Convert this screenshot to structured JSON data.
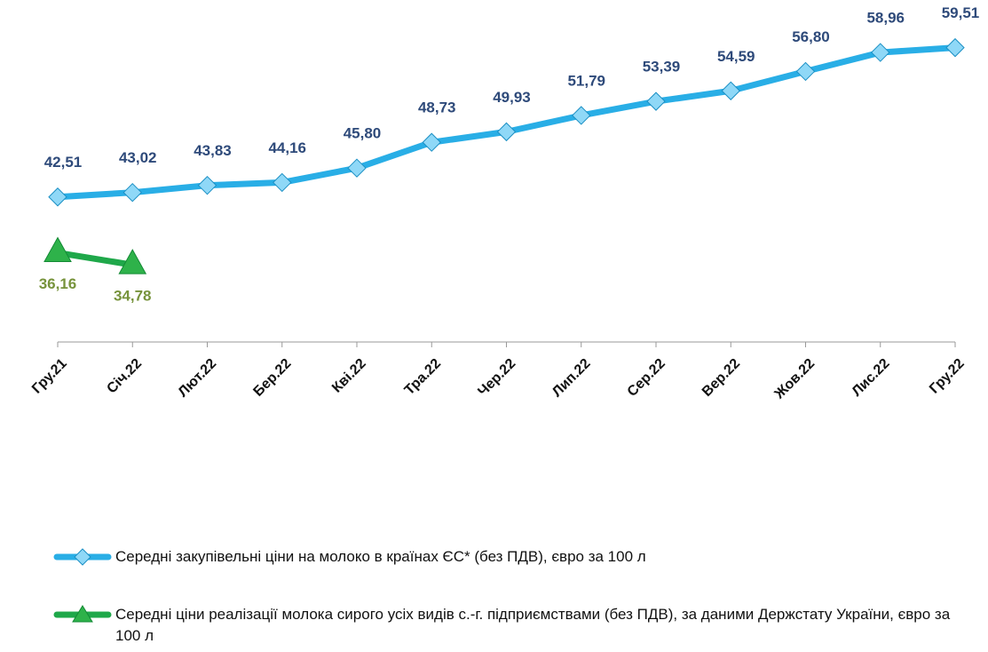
{
  "chart_data": {
    "type": "line",
    "categories": [
      "Гру.21",
      "Січ.22",
      "Лют.22",
      "Бер.22",
      "Кві.22",
      "Тра.22",
      "Чер.22",
      "Лип.22",
      "Сер.22",
      "Вер.22",
      "Жов.22",
      "Лис.22",
      "Гру.22"
    ],
    "series": [
      {
        "name": "Середні закупівельні ціни на молоко в країнах ЄС* (без ПДВ), євро за 100 л",
        "color": "#29aee6",
        "marker": "diamond",
        "label_color": "#2e4a7a",
        "values": [
          42.51,
          43.02,
          43.83,
          44.16,
          45.8,
          48.73,
          49.93,
          51.79,
          53.39,
          54.59,
          56.8,
          58.96,
          59.51
        ],
        "value_labels": [
          "42,51",
          "43,02",
          "43,83",
          "44,16",
          "45,80",
          "48,73",
          "49,93",
          "51,79",
          "53,39",
          "54,59",
          "56,80",
          "58,96",
          "59,51"
        ]
      },
      {
        "name": "Середні ціни реалізації молока сирого усіх видів с.-г. підприємствами (без ПДВ), за даними Держстату України, євро за 100 л",
        "color": "#1fa84a",
        "marker": "triangle",
        "label_color": "#77933c",
        "label_position": "below",
        "values": [
          36.16,
          34.78,
          null,
          null,
          null,
          null,
          null,
          null,
          null,
          null,
          null,
          null,
          null
        ],
        "value_labels": [
          "36,16",
          "34,78",
          null,
          null,
          null,
          null,
          null,
          null,
          null,
          null,
          null,
          null,
          null
        ]
      }
    ],
    "ylim": [
      26,
      62
    ]
  }
}
